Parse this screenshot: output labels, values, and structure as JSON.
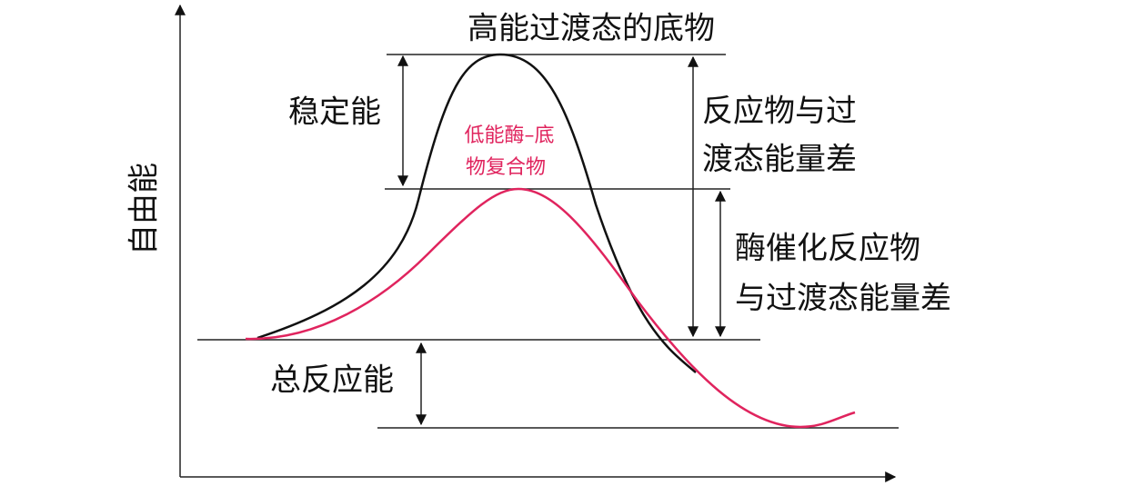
{
  "y_axis_label": "自由能",
  "labels": {
    "transition_state": "高能过渡态的底物",
    "stabilization": "稳定能",
    "enzyme_complex": [
      "低能酶–底",
      "物复合物"
    ],
    "uncatalyzed_difference": [
      "反应物与过",
      "渡态能量差"
    ],
    "catalyzed_difference": [
      "酶催化反应物",
      "与过渡态能量差"
    ],
    "total_reaction_energy": "总反应能"
  }
}
